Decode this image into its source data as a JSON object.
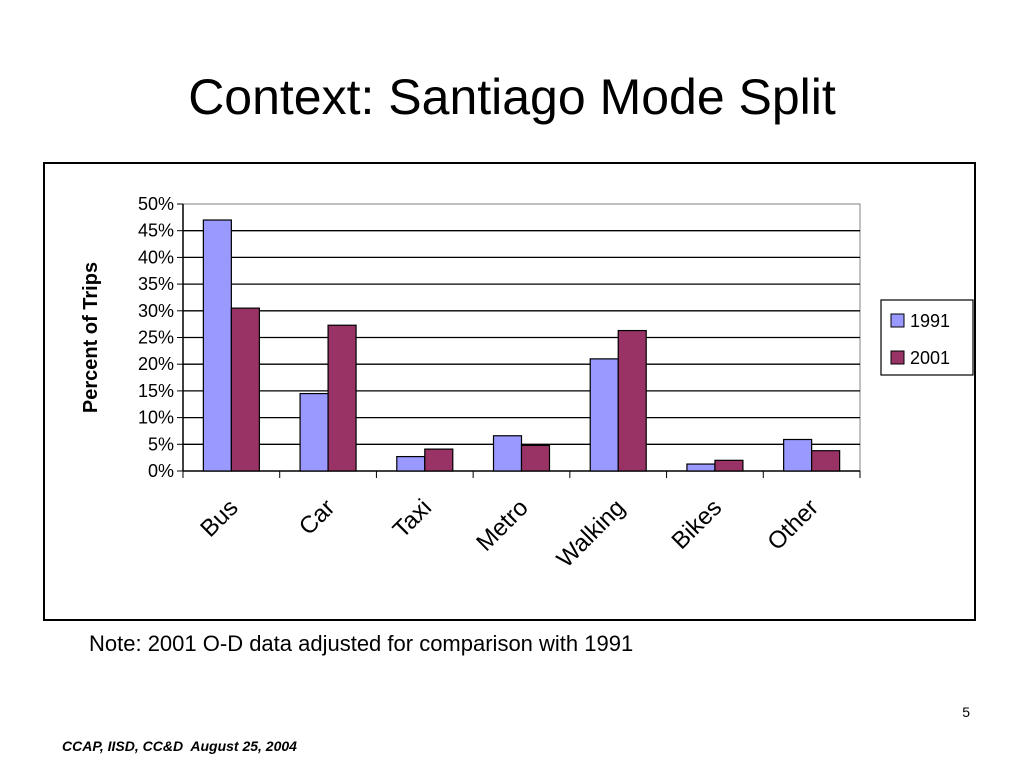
{
  "slide": {
    "title": "Context: Santiago Mode Split",
    "note": "Note: 2001 O-D data adjusted for comparison with 1991",
    "page_number": "5",
    "footer": "CCAP, IISD, CC&D  August 25, 2004"
  },
  "chart_data": {
    "type": "bar",
    "title": "",
    "xlabel": "",
    "ylabel": "Percent of Trips",
    "categories": [
      "Bus",
      "Car",
      "Taxi",
      "Metro",
      "Walking",
      "Bikes",
      "Other"
    ],
    "series": [
      {
        "name": "1991",
        "color": "#9999ff",
        "values": [
          47,
          14.5,
          2.7,
          6.6,
          21,
          1.3,
          5.9
        ]
      },
      {
        "name": "2001",
        "color": "#993366",
        "values": [
          30.5,
          27.3,
          4.1,
          4.8,
          26.3,
          2,
          3.8
        ]
      }
    ],
    "ylim": [
      0,
      50
    ],
    "yticks": [
      "0%",
      "5%",
      "10%",
      "15%",
      "20%",
      "25%",
      "30%",
      "35%",
      "40%",
      "45%",
      "50%"
    ],
    "grid": true,
    "legend_position": "right"
  }
}
